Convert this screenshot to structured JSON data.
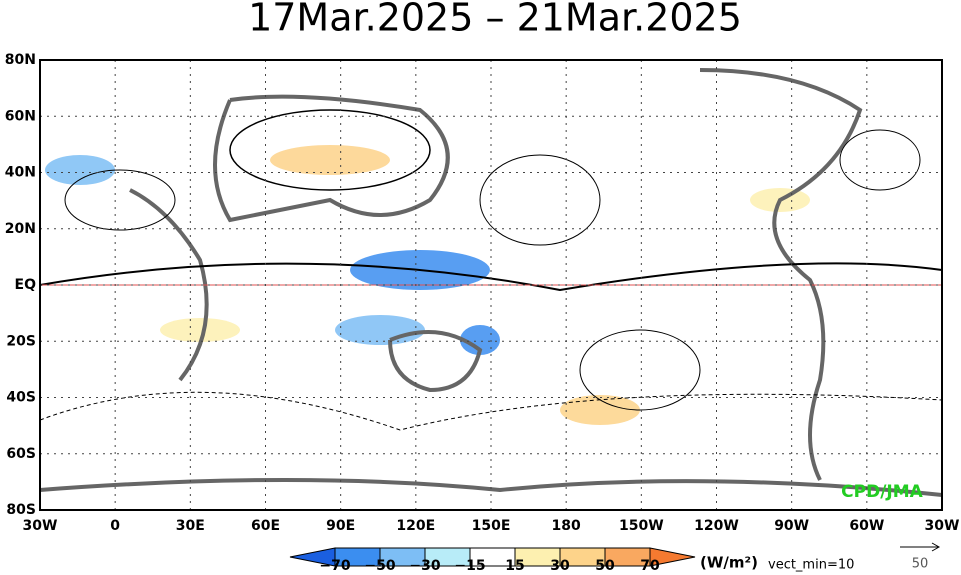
{
  "header": {
    "title": "17Mar.2025 – 21Mar.2025"
  },
  "map": {
    "lat_labels": [
      "80N",
      "60N",
      "40N",
      "20N",
      "EQ",
      "20S",
      "40S",
      "60S",
      "80S"
    ],
    "lon_labels": [
      "30W",
      "0",
      "30E",
      "60E",
      "90E",
      "120E",
      "150E",
      "180",
      "150W",
      "120W",
      "90W",
      "60W",
      "30W"
    ],
    "credit": "CPD/JMA"
  },
  "legend": {
    "colorbar_labels": [
      "−70",
      "−50",
      "−30",
      "−15",
      "15",
      "30",
      "50",
      "70"
    ],
    "colors": [
      "#1a5fe0",
      "#3b8ef0",
      "#7dbef5",
      "#b8ecf8",
      "#ffffff",
      "#fdf0b0",
      "#fdd38a",
      "#f9a860",
      "#f57a30"
    ],
    "units": "(W/m²)",
    "vect_min": "vect_min=10",
    "ref_vector": "50"
  }
}
